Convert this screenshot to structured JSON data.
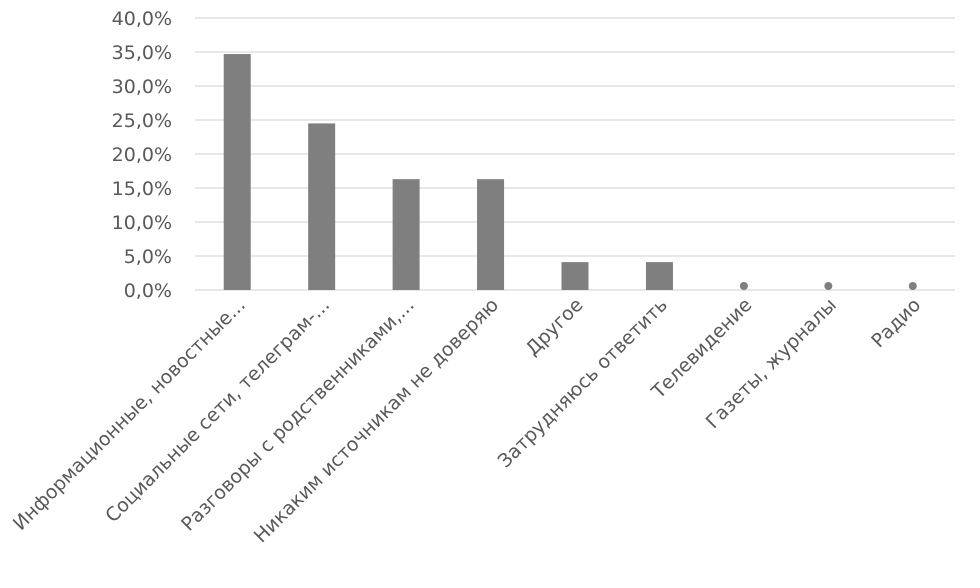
{
  "chart_data": {
    "type": "bar",
    "title": "",
    "xlabel": "",
    "ylabel": "",
    "categories": [
      "Информационные, новостные...",
      "Социальные сети, телеграм-...",
      "Разговоры с родственниками,...",
      "Никаким источникам не доверяю",
      "Другое",
      "Затрудняюсь ответить",
      "Телевидение",
      "Газеты, журналы",
      "Радио"
    ],
    "values": [
      34.7,
      24.5,
      16.3,
      16.3,
      4.1,
      4.1,
      0,
      0,
      0
    ],
    "ylim": [
      0,
      40
    ],
    "yticks": [
      "0,0%",
      "5,0%",
      "10,0%",
      "15,0%",
      "20,0%",
      "25,0%",
      "30,0%",
      "35,0%",
      "40,0%"
    ],
    "grid": true,
    "legend": "none",
    "bar_color": "#7f7f7f",
    "grid_color": "#d9d9d9"
  }
}
